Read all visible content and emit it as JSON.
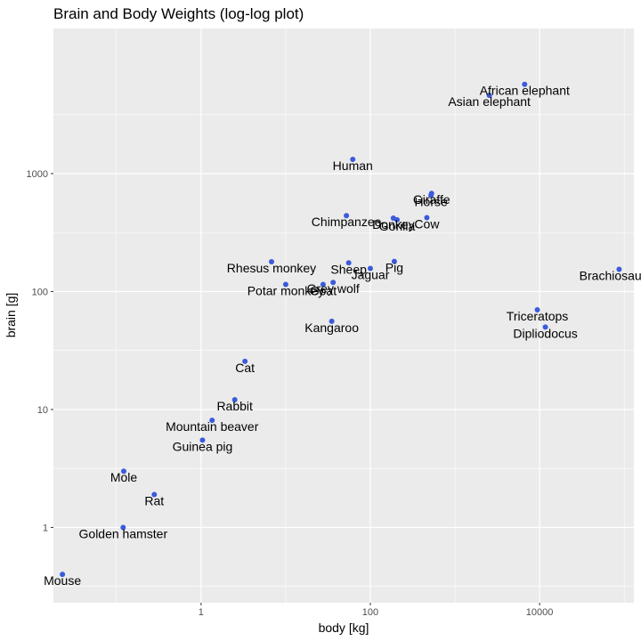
{
  "chart_data": {
    "type": "scatter",
    "title": "Brain and Body Weights (log-log plot)",
    "xlabel": "body [kg]",
    "ylabel": "brain [g]",
    "x_scale": "log10",
    "y_scale": "log10",
    "xlim": [
      0.018,
      130000
    ],
    "ylim": [
      0.23,
      17000
    ],
    "x_ticks": [
      {
        "value": 1,
        "label": "1"
      },
      {
        "value": 100,
        "label": "100"
      },
      {
        "value": 10000,
        "label": "10000"
      }
    ],
    "y_ticks": [
      {
        "value": 1,
        "label": "1"
      },
      {
        "value": 10,
        "label": "10"
      },
      {
        "value": 100,
        "label": "100"
      },
      {
        "value": 1000,
        "label": "1000"
      }
    ],
    "grid": true,
    "point_color": "#3b5bdb",
    "panel_color": "#ebebeb",
    "grid_color": "#ffffff",
    "points": [
      {
        "name": "Mountain beaver",
        "body": 1.35,
        "brain": 8.1
      },
      {
        "name": "Cow",
        "body": 465,
        "brain": 423
      },
      {
        "name": "Grey wolf",
        "body": 36.33,
        "brain": 119.5
      },
      {
        "name": "Goat",
        "body": 27.66,
        "brain": 115
      },
      {
        "name": "Guinea pig",
        "body": 1.04,
        "brain": 5.5
      },
      {
        "name": "Dipliodocus",
        "body": 11700,
        "brain": 50
      },
      {
        "name": "Asian elephant",
        "body": 2547,
        "brain": 4603
      },
      {
        "name": "Donkey",
        "body": 187.1,
        "brain": 419
      },
      {
        "name": "Horse",
        "body": 521,
        "brain": 655
      },
      {
        "name": "Potar monkey",
        "body": 10,
        "brain": 115
      },
      {
        "name": "Cat",
        "body": 3.3,
        "brain": 25.6
      },
      {
        "name": "Giraffe",
        "body": 529,
        "brain": 680
      },
      {
        "name": "Gorilla",
        "body": 207,
        "brain": 406
      },
      {
        "name": "Human",
        "body": 62,
        "brain": 1320
      },
      {
        "name": "African elephant",
        "body": 6654,
        "brain": 5712
      },
      {
        "name": "Triceratops",
        "body": 9400,
        "brain": 70
      },
      {
        "name": "Rhesus monkey",
        "body": 6.8,
        "brain": 179
      },
      {
        "name": "Kangaroo",
        "body": 35,
        "brain": 56
      },
      {
        "name": "Golden hamster",
        "body": 0.12,
        "brain": 1
      },
      {
        "name": "Mouse",
        "body": 0.023,
        "brain": 0.4
      },
      {
        "name": "Rabbit",
        "body": 2.5,
        "brain": 12.1
      },
      {
        "name": "Sheep",
        "body": 55.5,
        "brain": 175
      },
      {
        "name": "Jaguar",
        "body": 100,
        "brain": 157
      },
      {
        "name": "Chimpanzee",
        "body": 52.16,
        "brain": 440
      },
      {
        "name": "Rat",
        "body": 0.28,
        "brain": 1.9
      },
      {
        "name": "Brachiosaurus",
        "body": 87000,
        "brain": 154.5
      },
      {
        "name": "Mole",
        "body": 0.122,
        "brain": 3
      },
      {
        "name": "Pig",
        "body": 192,
        "brain": 180
      }
    ]
  }
}
